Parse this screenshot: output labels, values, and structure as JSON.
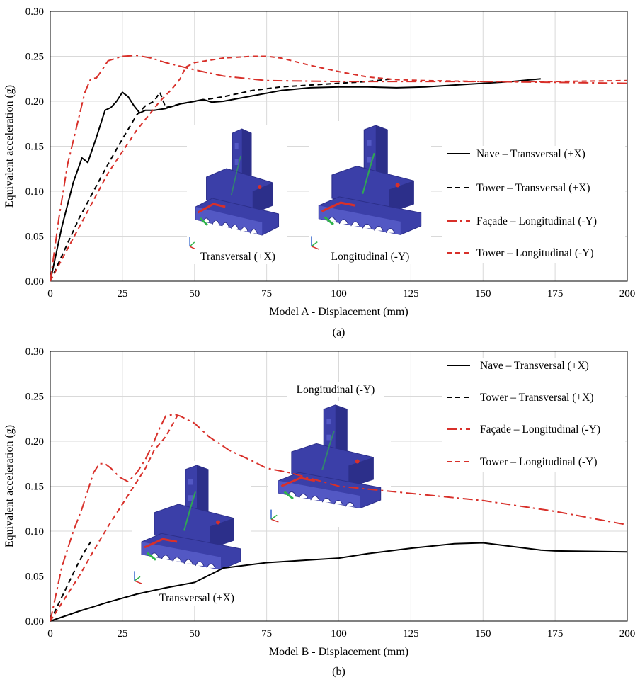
{
  "figure": {
    "legend_labels": [
      "Nave – Transversal (+X)",
      "Tower – Transversal (+X)",
      "Façade – Longitudinal (-Y)",
      "Tower – Longitudinal (-Y)"
    ],
    "colors": {
      "black": "#000000",
      "red": "#d8302a",
      "grid": "#d9d9d9",
      "model_blue": "#3b3fa8"
    }
  },
  "chart_data": [
    {
      "type": "line",
      "caption": "(a)",
      "xlabel": "Model A - Displacement (mm)",
      "ylabel": "Equivalent acceleration (g)",
      "xlim": [
        0,
        200
      ],
      "ylim": [
        0,
        0.3
      ],
      "xticks": [
        "0",
        "25",
        "50",
        "75",
        "100",
        "125",
        "150",
        "175",
        "200"
      ],
      "yticks": [
        "0.00",
        "0.05",
        "0.10",
        "0.15",
        "0.20",
        "0.25",
        "0.30"
      ],
      "grid": true,
      "legend_position": "right",
      "insets": [
        {
          "label": "Transversal (+X)",
          "icon": "church-model-deformed-transversal"
        },
        {
          "label": "Longitudinal (-Y)",
          "icon": "church-model-deformed-longitudinal"
        }
      ],
      "series": [
        {
          "name": "Nave – Transversal (+X)",
          "style": "solid",
          "color": "#000000",
          "x": [
            0,
            4,
            8,
            11,
            13,
            16,
            19,
            21,
            23,
            25,
            27,
            29,
            31,
            33,
            36,
            40,
            45,
            50,
            53,
            56,
            60,
            70,
            80,
            90,
            100,
            110,
            120,
            130,
            140,
            150,
            160,
            170
          ],
          "y": [
            0,
            0.06,
            0.11,
            0.137,
            0.132,
            0.16,
            0.19,
            0.193,
            0.2,
            0.21,
            0.205,
            0.195,
            0.187,
            0.19,
            0.19,
            0.192,
            0.197,
            0.2,
            0.202,
            0.199,
            0.2,
            0.206,
            0.212,
            0.215,
            0.216,
            0.216,
            0.215,
            0.216,
            0.218,
            0.22,
            0.222,
            0.225
          ]
        },
        {
          "name": "Tower – Transversal (+X)",
          "style": "dashed",
          "color": "#000000",
          "x": [
            0,
            5,
            10,
            15,
            20,
            25,
            30,
            33,
            36,
            38,
            40,
            45,
            50,
            60,
            70,
            80,
            90,
            100,
            110,
            119
          ],
          "y": [
            0,
            0.035,
            0.07,
            0.1,
            0.13,
            0.158,
            0.185,
            0.195,
            0.2,
            0.21,
            0.193,
            0.197,
            0.2,
            0.205,
            0.212,
            0.216,
            0.218,
            0.22,
            0.222,
            0.225
          ]
        },
        {
          "name": "Façade – Longitudinal (-Y)",
          "style": "dash-dot",
          "color": "#d8302a",
          "x": [
            0,
            3,
            6,
            9,
            12,
            14,
            16,
            18,
            20,
            25,
            30,
            35,
            40,
            50,
            60,
            75,
            100,
            125,
            150,
            175,
            200
          ],
          "y": [
            0,
            0.07,
            0.13,
            0.17,
            0.21,
            0.225,
            0.226,
            0.235,
            0.245,
            0.25,
            0.251,
            0.248,
            0.243,
            0.235,
            0.228,
            0.223,
            0.222,
            0.222,
            0.222,
            0.221,
            0.22
          ]
        },
        {
          "name": "Tower – Longitudinal (-Y)",
          "style": "dashed",
          "color": "#d8302a",
          "x": [
            0,
            10,
            20,
            30,
            38,
            42,
            45,
            47,
            50,
            60,
            70,
            75,
            80,
            90,
            100,
            110,
            120,
            130,
            150,
            175,
            200
          ],
          "y": [
            0,
            0.06,
            0.12,
            0.168,
            0.2,
            0.213,
            0.225,
            0.238,
            0.243,
            0.248,
            0.25,
            0.25,
            0.248,
            0.24,
            0.233,
            0.227,
            0.224,
            0.223,
            0.222,
            0.222,
            0.223
          ]
        }
      ]
    },
    {
      "type": "line",
      "caption": "(b)",
      "xlabel": "Model B - Displacement (mm)",
      "ylabel": "Equivalent acceleration (g)",
      "xlim": [
        0,
        200
      ],
      "ylim": [
        0,
        0.3
      ],
      "xticks": [
        "0",
        "25",
        "50",
        "75",
        "100",
        "125",
        "150",
        "175",
        "200"
      ],
      "yticks": [
        "0.00",
        "0.05",
        "0.10",
        "0.15",
        "0.20",
        "0.25",
        "0.30"
      ],
      "grid": true,
      "legend_position": "top-right",
      "insets": [
        {
          "label": "Longitudinal (-Y)",
          "icon": "church-model-deformed-longitudinal"
        },
        {
          "label": "Transversal (+X)",
          "icon": "church-model-deformed-transversal"
        }
      ],
      "series": [
        {
          "name": "Nave – Transversal (+X)",
          "style": "solid",
          "color": "#000000",
          "x": [
            0,
            10,
            20,
            30,
            40,
            50,
            60,
            75,
            90,
            100,
            110,
            125,
            140,
            150,
            160,
            170,
            175,
            200
          ],
          "y": [
            0,
            0.011,
            0.021,
            0.03,
            0.037,
            0.043,
            0.059,
            0.065,
            0.068,
            0.07,
            0.075,
            0.081,
            0.086,
            0.087,
            0.083,
            0.079,
            0.078,
            0.077
          ]
        },
        {
          "name": "Tower – Transversal (+X)",
          "style": "dashed",
          "color": "#000000",
          "x": [
            0,
            3,
            6,
            9,
            12,
            14
          ],
          "y": [
            0,
            0.02,
            0.04,
            0.06,
            0.078,
            0.088
          ]
        },
        {
          "name": "Façade – Longitudinal (-Y)",
          "style": "dash-dot",
          "color": "#d8302a",
          "x": [
            0,
            4,
            8,
            11,
            13,
            15,
            17,
            19,
            21,
            24,
            27,
            30,
            33,
            36,
            38,
            40,
            43,
            45,
            50,
            55,
            62,
            70,
            75,
            83,
            100,
            125,
            150,
            175,
            200
          ],
          "y": [
            0,
            0.06,
            0.1,
            0.125,
            0.145,
            0.165,
            0.175,
            0.175,
            0.17,
            0.16,
            0.155,
            0.165,
            0.18,
            0.2,
            0.215,
            0.228,
            0.23,
            0.228,
            0.22,
            0.205,
            0.19,
            0.178,
            0.17,
            0.165,
            0.15,
            0.142,
            0.134,
            0.122,
            0.107
          ]
        },
        {
          "name": "Tower – Longitudinal (-Y)",
          "style": "dashed",
          "color": "#d8302a",
          "x": [
            0,
            5,
            10,
            15,
            20,
            25,
            30,
            33,
            36,
            40,
            44
          ],
          "y": [
            0,
            0.025,
            0.05,
            0.078,
            0.105,
            0.13,
            0.155,
            0.17,
            0.19,
            0.205,
            0.228
          ]
        }
      ]
    }
  ]
}
